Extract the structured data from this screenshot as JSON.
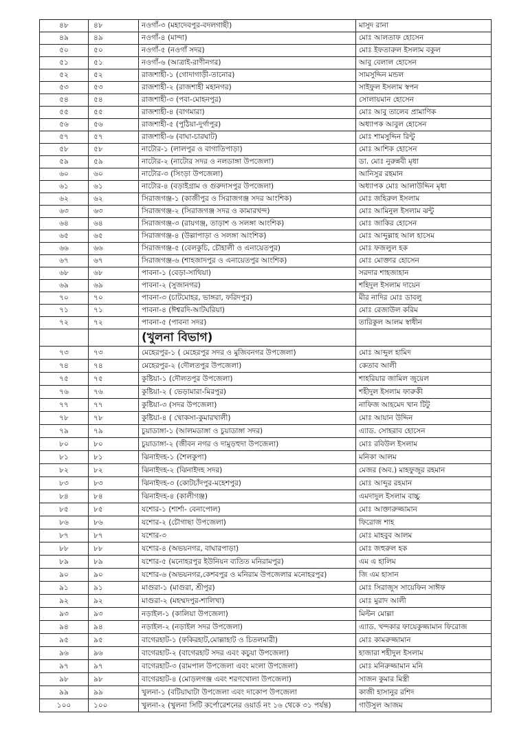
{
  "rows_a": [
    [
      "৪৮",
      "৪৮",
      "নওগাঁ-৩ (মহাদেবপুর-বদলগাছী)",
      "মাসুদ রানা"
    ],
    [
      "৪৯",
      "৪৯",
      "নওগাঁ-৪ (মান্দা)",
      "মোঃ আলতাফ হোসেন"
    ],
    [
      "৫০",
      "৫০",
      "নওগাঁ-৫ (নওগাঁ সদর)",
      "মোঃ ইফতারুল ইসলাম বকুল"
    ],
    [
      "৫১",
      "৫১",
      "নওগাঁ-৬ (আত্রাই-রাণীনগর)",
      "আবু বেলাল হোসেন"
    ],
    [
      "৫২",
      "৫২",
      "রাজশাহী-১ (গোদাগাড়ী-তানোর)",
      "সামসুদ্দিন মন্ডল"
    ],
    [
      "৫৩",
      "৫৩",
      "রাজশাহী-২ (রাজশাহী মহানগর)",
      "সাইফুল ইসলাম স্বপন"
    ],
    [
      "৫৪",
      "৫৪",
      "রাজশাহী-৩ (পবা-মোহনপুর)",
      "সোলায়মান হোসেন"
    ],
    [
      "৫৫",
      "৫৫",
      "রাজশাহী-৪ (বাগমারা)",
      "মোঃ আবু তালেব প্রামাণিক"
    ],
    [
      "৫৬",
      "৫৬",
      "রাজশাহী-৫ (পুঠিয়া-দুর্গাপুর)",
      "অধ্যাপক আবুল হোসেন"
    ],
    [
      "৫৭",
      "৫৭",
      "রাজশাহী-৬ (বাঘা-চারঘাট)",
      "মোঃ শামসুদ্দিন রিন্টু"
    ],
    [
      "৫৮",
      "৫৮",
      "নাটোর-১ (লালপুর ও বাগাতিপাড়া)",
      "মোঃ আশিক হোসেন"
    ],
    [
      "৫৯",
      "৫৯",
      "নাটোর-২ (নাটোর সদর ও নলডাঙ্গা উপজেলা)",
      "ডা. মোঃ নুরুন্নবী মৃধা"
    ],
    [
      "৬০",
      "৬০",
      "নাটোর-৩ (সিংড়া উপজেলা)",
      "আনিসুর রহমান"
    ],
    [
      "৬১",
      "৬১",
      "নাটোর-৪ (বড়াইগ্রাম ও গুরুদাসপুর উপজেলা)",
      "অধ্যাপক মোঃ আলাউদ্দিন মৃধা"
    ],
    [
      "৬২",
      "৬২",
      "সিরাজগঞ্জ-১ (কাজীপুর ও সিরাজগঞ্জ সদর আংশিক)",
      "মোঃ জহিরুল ইসলাম"
    ],
    [
      "৬৩",
      "৬৩",
      "সিরাজগঞ্জ-২ (সিরাজগঞ্জ সদর ও কামারখন্দ)",
      "মোঃ আমিনুল ইসলাম ঝন্টু"
    ],
    [
      "৬৪",
      "৬৪",
      "সিরাজগঞ্জ-৩ (রায়গঞ্জ, তাড়াশ ও সলঙ্গা আংশিক)",
      "মোঃ জাকির হোসেন"
    ],
    [
      "৬৫",
      "৬৫",
      "সিরাজগঞ্জ-৪ (উল্লাপাড়া ও সলঙ্গা আংশিক)",
      "মোঃ আব্দুল্লাহ আল হাসেম"
    ],
    [
      "৬৬",
      "৬৬",
      "সিরাজগঞ্জ-৫ (বেলকুচি, চৌহালী ও এনায়েতপুর)",
      "মোঃ ফজলুল হক"
    ],
    [
      "৬৭",
      "৬৭",
      "সিরাজগঞ্জ-৬ (শাহজাদপুর ও এনায়েতপুর আংশিক)",
      "মোঃ মোক্তার হোসেন"
    ],
    [
      "৬৮",
      "৬৮",
      "পাবনা-১ (বেড়া-সাথিয়া)",
      "সরদার শাহজাহান"
    ],
    [
      "৬৯",
      "৬৯",
      "পাবনা-২ (সুজানগর)",
      "শহিদুল ইসলাম দায়েন"
    ],
    [
      "৭০",
      "৭০",
      "পাবনা-৩ (চাটমোহর, ভাঙ্গরা, ফরিদপুর)",
      "মীর নাদির মোঃ ডাবলু"
    ],
    [
      "৭১",
      "৭১",
      "পাবনা-৪ (ঈশ্বরদি-আটঘরিয়া)",
      "মোঃ রেজাউল করিম"
    ],
    [
      "৭২",
      "৭২",
      "পাবনা-৫ (পাবনা সদর)",
      "তারিকুল আলম স্বাধীন"
    ]
  ],
  "section_title": "(খুলনা বিভাগ)",
  "rows_b": [
    [
      "৭৩",
      "৭৩",
      "মেহেরপুর-১ ( মেহেরপুর সদর ও মুজিবনগর উপজেলা)",
      "মোঃ আব্দুল হামিদ"
    ],
    [
      "৭৪",
      "৭৪",
      "মেহেরপুর-২ (দৌলতপুর উপজেলা)",
      "কেতাব আলী"
    ],
    [
      "৭৫",
      "৭৫",
      "কুষ্টিয়া-১ (দৌলতপুর উপজেলা)",
      "শাহরিয়ার জামিল জুয়েল"
    ],
    [
      "৭৬",
      "৭৬",
      "কুষ্টিয়া-২ ( ভেড়ামারা-মিরপুর)",
      "শহীদুল ইসলাম ফারুকী"
    ],
    [
      "৭৭",
      "৭৭",
      "কুষ্টিয়া-৩ (সদর উপজেলা)",
      "নাফিজ আহমেদ খান টিটু"
    ],
    [
      "৭৮",
      "৭৮",
      "কুষ্টিয়া-৪ ( খোকসা-কুমারখালী)",
      "মোঃ আয়ান উদ্দিন"
    ],
    [
      "৭৯",
      "৭৯",
      "চুয়াডাঙ্গা-১ (আলমডাঙ্গা ও চুয়াডাঙ্গা সদর)",
      "এ্যাড. সোহরাব হোসেন"
    ],
    [
      "৮০",
      "৮০",
      "চুয়াডাঙ্গা-২ (জীবন নগর ও দামুড়হুদা উপজেলা)",
      "মোঃ রবিউল ইসলাম"
    ],
    [
      "৮১",
      "৮১",
      "ঝিনাইদহ-১ (শৈলকুপা)",
      "মনিকা আলম"
    ],
    [
      "৮২",
      "৮২",
      "ঝিনাইদহ-২ (ঝিনাইদহ সদর)",
      "মেজর (অব.) মাহফুজুর রহমান"
    ],
    [
      "৮৩",
      "৮৩",
      "ঝিনাইদহ-৩ (কোটচাঁদপুর-মহেশপুর)",
      "মোঃ আব্দুর রহমান"
    ],
    [
      "৮৪",
      "৮৪",
      "ঝিনাইদহ-৪ (কালীগঞ্জ)",
      "এমদাদুল ইসলাম বাচ্চু"
    ],
    [
      "৮৫",
      "৮৫",
      "যশোর-১ (শার্শা- বেনাপোল)",
      "মোঃ আক্তারুজ্জামান"
    ],
    [
      "৮৬",
      "৮৬",
      "যশোর-২ (চৌগাছা উপজেলা)",
      "ফিরোজ শাহ"
    ],
    [
      "৮৭",
      "৮৭",
      "যশোর-৩",
      "মোঃ মাহবুব আলম"
    ],
    [
      "৮৮",
      "৮৮",
      "যশোর-৪ (অভয়নগর, বাঘারপাড়া)",
      "মোঃ জহুরুল হক"
    ],
    [
      "৮৯",
      "৮৯",
      "যশোর-৫ (মনোহরপুর ইউনিয়ন ব্যতিত মনিরামপুর)",
      "এম এ হালিম"
    ],
    [
      "৯০",
      "৯০",
      "যশোর-৬ (অভয়নগর,কেশবপুর ও মনিরাম উপজেলার মনোহরপুর)",
      "জি এম হাসান"
    ],
    [
      "৯১",
      "৯১",
      "মাগুরা-১ (মাগুরা, শ্রীপুর)",
      "মোঃ সিরাজুস সায়েফিন সাঈফ"
    ],
    [
      "৯২",
      "৯২",
      "মাগুরা-২ (মহম্মদপুর-শালিখা)",
      "মোঃ মুরাদ আলী"
    ],
    [
      "৯৩",
      "৯৩",
      "নড়াইল-১ (কালিয়া উপজেলা)",
      "মিল্টন মোল্লা"
    ],
    [
      "৯৪",
      "৯৪",
      "নড়াইল-২ (নড়াইল সদর উপজেলা)",
      "এ্যাড. খন্দকার ফায়েকুজ্জামান ফিরোজ"
    ],
    [
      "৯৫",
      "৯৫",
      "বাগেরহাট-১ (ফকিরহাট,মোল্লাহাট ও চিতলমারী)",
      "মোঃ কামরুজ্জামান"
    ],
    [
      "৯৬",
      "৯৬",
      "বাগেরহাট-২ (বাগেরহাট সদর এবং কচুয়া উপজেলা)",
      "হাজারা শহীদুল ইসলাম"
    ],
    [
      "৯৭",
      "৯৭",
      "বাগেরহাট-৩ (রামপাল উপজেলা এবং মংলা উপজেলা)",
      "মোঃ মনিরুজ্জামান মনি"
    ],
    [
      "৯৮",
      "৯৮",
      "বাগেরহাট-৪ (মোড়লগঞ্জ এবং শরণখোলা উপজেলা)",
      "সাজন কুমার মিস্ত্রী"
    ],
    [
      "৯৯",
      "৯৯",
      "খুলনা-১ (বটিয়াঘাটা উপজেলা এবং দাকোপ উপজেলা",
      "কাজী হাসানুর রশিদ"
    ],
    [
      "১০০",
      "১০০",
      "খুলনা-২ (খুলনা সিটি কর্পোরেশনের ওয়ার্ড নং ১৬ থেকে ৩১ পর্যন্ত)",
      "গাউসুল আজম"
    ]
  ]
}
